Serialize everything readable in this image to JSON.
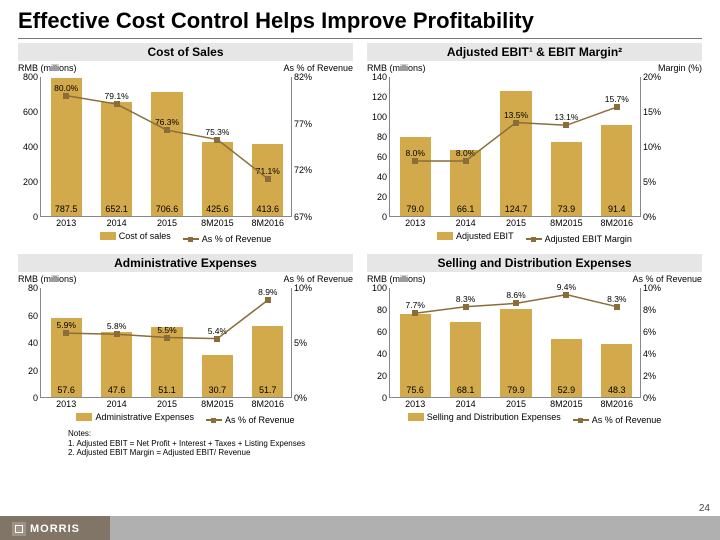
{
  "title": "Effective Cost Control Helps Improve Profitability",
  "page_number": "24",
  "logo_text": "MORRIS",
  "colors": {
    "bar": "#d2a94b",
    "line": "#8a6d3b",
    "panel_bg": "#e6e6e6"
  },
  "notes": {
    "heading": "Notes:",
    "n1": "1.   Adjusted EBIT = Net Profit + Interest + Taxes + Listing Expenses",
    "n2": "2.   Adjusted EBIT Margin = Adjusted EBIT/ Revenue"
  },
  "charts": {
    "cost_of_sales": {
      "title": "Cost of Sales",
      "left_label": "RMB (millions)",
      "right_label": "As % of Revenue",
      "categories": [
        "2013",
        "2014",
        "2015",
        "8M2015",
        "8M2016"
      ],
      "bars": [
        787.5,
        652.1,
        706.6,
        425.6,
        413.6
      ],
      "line": [
        80.0,
        79.1,
        76.3,
        75.3,
        71.1
      ],
      "line_labels": [
        "80.0%",
        "79.1%",
        "76.3%",
        "75.3%",
        "71.1%"
      ],
      "y_left": {
        "min": 0,
        "max": 800,
        "ticks": [
          0,
          200,
          400,
          600,
          800
        ]
      },
      "y_right": {
        "min": 67,
        "max": 82,
        "ticks": [
          "67%",
          "72%",
          "77%",
          "82%"
        ]
      },
      "legend_bar": "Cost of sales",
      "legend_line": "As % of Revenue"
    },
    "ebit": {
      "title": "Adjusted EBIT¹ & EBIT Margin²",
      "left_label": "RMB (millions)",
      "right_label": "Margin (%)",
      "categories": [
        "2013",
        "2014",
        "2015",
        "8M2015",
        "8M2016"
      ],
      "bars": [
        79.0,
        66.1,
        124.7,
        73.9,
        91.4
      ],
      "line": [
        8.0,
        8.0,
        13.5,
        13.1,
        15.7
      ],
      "line_labels": [
        "8.0%",
        "8.0%",
        "13.5%",
        "13.1%",
        "15.7%"
      ],
      "y_left": {
        "min": 0,
        "max": 140,
        "ticks": [
          0,
          20,
          40,
          60,
          80,
          100,
          120,
          140
        ]
      },
      "y_right": {
        "min": 0,
        "max": 20,
        "ticks": [
          "0%",
          "5%",
          "10%",
          "15%",
          "20%"
        ]
      },
      "legend_bar": "Adjusted EBIT",
      "legend_line": "Adjusted EBIT Margin"
    },
    "admin": {
      "title": "Administrative Expenses",
      "left_label": "RMB (millions)",
      "right_label": "As % of Revenue",
      "categories": [
        "2013",
        "2014",
        "2015",
        "8M2015",
        "8M2016"
      ],
      "bars": [
        57.6,
        47.6,
        51.1,
        30.7,
        51.7
      ],
      "line": [
        5.9,
        5.8,
        5.5,
        5.4,
        8.9
      ],
      "line_labels": [
        "5.9%",
        "5.8%",
        "5.5%",
        "5.4%",
        "8.9%"
      ],
      "y_left": {
        "min": 0,
        "max": 80,
        "ticks": [
          0,
          20,
          40,
          60,
          80
        ]
      },
      "y_right": {
        "min": 0,
        "max": 10,
        "ticks": [
          "0%",
          "5%",
          "10%"
        ]
      },
      "legend_bar": "Administrative Expenses",
      "legend_line": "As % of Revenue"
    },
    "selling": {
      "title": "Selling and Distribution Expenses",
      "left_label": "RMB (millions)",
      "right_label": "As % of Revenue",
      "categories": [
        "2013",
        "2014",
        "2015",
        "8M2015",
        "8M2016"
      ],
      "bars": [
        75.6,
        68.1,
        79.9,
        52.9,
        48.3
      ],
      "line": [
        7.7,
        8.3,
        8.6,
        9.4,
        8.3
      ],
      "line_labels": [
        "7.7%",
        "8.3%",
        "8.6%",
        "9.4%",
        "8.3%"
      ],
      "y_left": {
        "min": 0,
        "max": 100,
        "ticks": [
          0,
          20,
          40,
          60,
          80,
          100
        ]
      },
      "y_right": {
        "min": 0,
        "max": 10,
        "ticks": [
          "0%",
          "2%",
          "4%",
          "6%",
          "8%",
          "10%"
        ]
      },
      "legend_bar": "Selling and Distribution Expenses",
      "legend_line": "As % of Revenue"
    }
  }
}
